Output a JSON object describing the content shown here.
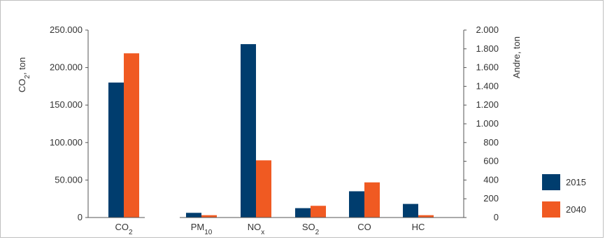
{
  "chart_data": {
    "type": "bar",
    "title": "",
    "groups": [
      {
        "name": "co2-group",
        "axis": "left",
        "categories": [
          {
            "base": "CO",
            "sub": "2"
          }
        ]
      },
      {
        "name": "other-group",
        "axis": "right",
        "categories": [
          {
            "base": "PM",
            "sub": "10"
          },
          {
            "base": "NO",
            "sub": "x"
          },
          {
            "base": "SO",
            "sub": "2"
          },
          {
            "base": "CO",
            "sub": ""
          },
          {
            "base": "HC",
            "sub": ""
          }
        ]
      }
    ],
    "series": [
      {
        "name": "2015",
        "color": "#003d6e",
        "co2": [
          180000
        ],
        "other": [
          50,
          1850,
          100,
          280,
          145
        ]
      },
      {
        "name": "2040",
        "color": "#f05a22",
        "co2": [
          219000
        ],
        "other": [
          25,
          610,
          125,
          375,
          25
        ]
      }
    ],
    "left_axis": {
      "label_base": "CO",
      "label_sub": "2",
      "label_rest": ", ton",
      "ylim": [
        0,
        250000
      ],
      "ticks": [
        {
          "value": 0,
          "label": "0"
        },
        {
          "value": 50000,
          "label": "50.000"
        },
        {
          "value": 100000,
          "label": "100.000"
        },
        {
          "value": 150000,
          "label": "150.000"
        },
        {
          "value": 200000,
          "label": "200.000"
        },
        {
          "value": 250000,
          "label": "250.000"
        }
      ]
    },
    "right_axis": {
      "label": "Andre, ton",
      "ylim": [
        0,
        2000
      ],
      "ticks": [
        {
          "value": 0,
          "label": "0"
        },
        {
          "value": 200,
          "label": "200"
        },
        {
          "value": 400,
          "label": "400"
        },
        {
          "value": 600,
          "label": "600"
        },
        {
          "value": 800,
          "label": "800"
        },
        {
          "value": 1000,
          "label": "1.000"
        },
        {
          "value": 1200,
          "label": "1.200"
        },
        {
          "value": 1400,
          "label": "1.400"
        },
        {
          "value": 1600,
          "label": "1.600"
        },
        {
          "value": 1800,
          "label": "1.800"
        },
        {
          "value": 2000,
          "label": "2.000"
        }
      ]
    },
    "legend_position": "bottom-right",
    "grid": false
  }
}
